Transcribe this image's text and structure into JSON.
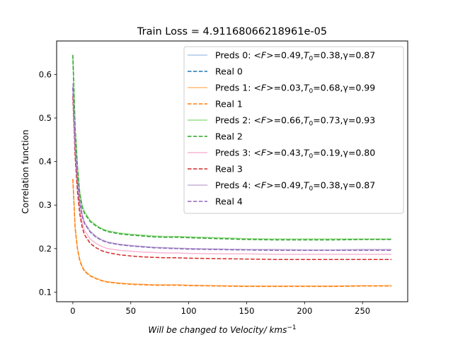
{
  "chart_data": {
    "type": "line",
    "title": "Train Loss = 4.91168066218961e-05",
    "xlabel": "Will be changed to Velocity/ kms",
    "xlabel_superscript": "−1",
    "ylabel": "Correlation function",
    "xlim": [
      -14,
      289
    ],
    "ylim": [
      0.078,
      0.677
    ],
    "xticks": [
      0,
      50,
      100,
      150,
      200,
      250
    ],
    "yticks": [
      0.1,
      0.2,
      0.3,
      0.4,
      0.5,
      0.6
    ],
    "grid": false,
    "legend_position": "top-right",
    "x": [
      0,
      2,
      4,
      6,
      8,
      10,
      15,
      20,
      25,
      30,
      40,
      50,
      60,
      70,
      80,
      90,
      100,
      125,
      150,
      175,
      200,
      225,
      250,
      275
    ],
    "series": [
      {
        "name": "Preds 0: <F>=0.49,T0=0.38,γ=0.87",
        "legend_label": {
          "pre": "Preds 0: ",
          "math": "<F>",
          "mid": "=0.49,",
          "tsub": "0",
          "post": "=0.38,γ=0.87"
        },
        "style": "solid",
        "color": "#aec7e8",
        "values": [
          0.58,
          0.44,
          0.36,
          0.31,
          0.28,
          0.26,
          0.24,
          0.228,
          0.22,
          0.215,
          0.21,
          0.207,
          0.205,
          0.203,
          0.202,
          0.201,
          0.2,
          0.199,
          0.198,
          0.198,
          0.197,
          0.197,
          0.198,
          0.198
        ]
      },
      {
        "name": "Real 0",
        "legend_label": {
          "pre": "Real 0"
        },
        "style": "dashed",
        "color": "#1f77b4",
        "values": [
          0.57,
          0.43,
          0.355,
          0.305,
          0.275,
          0.258,
          0.238,
          0.226,
          0.219,
          0.214,
          0.209,
          0.206,
          0.204,
          0.202,
          0.201,
          0.2,
          0.199,
          0.198,
          0.197,
          0.196,
          0.196,
          0.196,
          0.196,
          0.196
        ]
      },
      {
        "name": "Preds 1: <F>=0.03,T0=0.68,γ=0.99",
        "legend_label": {
          "pre": "Preds 1: ",
          "math": "<F>",
          "mid": "=0.03,",
          "tsub": "0",
          "post": "=0.68,γ=0.99"
        },
        "style": "solid",
        "color": "#ffbb78",
        "values": [
          0.36,
          0.25,
          0.2,
          0.175,
          0.16,
          0.15,
          0.138,
          0.132,
          0.127,
          0.124,
          0.121,
          0.119,
          0.118,
          0.117,
          0.117,
          0.117,
          0.116,
          0.115,
          0.114,
          0.114,
          0.114,
          0.114,
          0.115,
          0.115
        ]
      },
      {
        "name": "Real 1",
        "legend_label": {
          "pre": "Real 1"
        },
        "style": "dashed",
        "color": "#ff7f0e",
        "values": [
          0.36,
          0.245,
          0.198,
          0.172,
          0.158,
          0.148,
          0.137,
          0.131,
          0.126,
          0.123,
          0.12,
          0.118,
          0.117,
          0.116,
          0.116,
          0.116,
          0.115,
          0.114,
          0.113,
          0.113,
          0.113,
          0.113,
          0.114,
          0.114
        ]
      },
      {
        "name": "Preds 2: <F>=0.66,T0=0.73,γ=0.93",
        "legend_label": {
          "pre": "Preds 2: ",
          "math": "<F>",
          "mid": "=0.66,",
          "tsub": "0",
          "post": "=0.73,γ=0.93"
        },
        "style": "solid",
        "color": "#98df8a",
        "values": [
          0.64,
          0.48,
          0.39,
          0.33,
          0.3,
          0.285,
          0.265,
          0.254,
          0.246,
          0.241,
          0.236,
          0.233,
          0.231,
          0.229,
          0.228,
          0.228,
          0.227,
          0.225,
          0.223,
          0.222,
          0.222,
          0.222,
          0.222,
          0.222
        ]
      },
      {
        "name": "Real 2",
        "legend_label": {
          "pre": "Real 2"
        },
        "style": "dashed",
        "color": "#2ca02c",
        "values": [
          0.645,
          0.475,
          0.385,
          0.325,
          0.295,
          0.281,
          0.262,
          0.252,
          0.244,
          0.239,
          0.234,
          0.231,
          0.229,
          0.227,
          0.226,
          0.226,
          0.225,
          0.223,
          0.221,
          0.22,
          0.22,
          0.22,
          0.221,
          0.221
        ]
      },
      {
        "name": "Preds 3: <F>=0.43,T0=0.19,γ=0.80",
        "legend_label": {
          "pre": "Preds 3: ",
          "math": "<F>",
          "mid": "=0.43,",
          "tsub": "0",
          "post": "=0.19,γ=0.80"
        },
        "style": "solid",
        "color": "#f7b6d2",
        "values": [
          0.56,
          0.42,
          0.34,
          0.29,
          0.26,
          0.242,
          0.222,
          0.212,
          0.205,
          0.2,
          0.196,
          0.194,
          0.192,
          0.191,
          0.19,
          0.19,
          0.189,
          0.188,
          0.188,
          0.187,
          0.187,
          0.187,
          0.187,
          0.187
        ]
      },
      {
        "name": "Real 3",
        "legend_label": {
          "pre": "Real 3"
        },
        "style": "dashed",
        "color": "#d62728",
        "values": [
          0.55,
          0.41,
          0.33,
          0.28,
          0.25,
          0.232,
          0.212,
          0.202,
          0.195,
          0.191,
          0.186,
          0.183,
          0.181,
          0.18,
          0.179,
          0.179,
          0.178,
          0.177,
          0.176,
          0.175,
          0.175,
          0.175,
          0.175,
          0.175
        ]
      },
      {
        "name": "Preds 4: <F>=0.49,T0=0.38,γ=0.87",
        "legend_label": {
          "pre": "Preds 4: ",
          "math": "<F>",
          "mid": "=0.49,",
          "tsub": "0",
          "post": "=0.38,γ=0.87"
        },
        "style": "solid",
        "color": "#c5b0d5",
        "values": [
          0.58,
          0.44,
          0.36,
          0.31,
          0.28,
          0.26,
          0.24,
          0.228,
          0.22,
          0.215,
          0.21,
          0.207,
          0.205,
          0.203,
          0.202,
          0.201,
          0.2,
          0.199,
          0.198,
          0.198,
          0.197,
          0.197,
          0.198,
          0.198
        ]
      },
      {
        "name": "Real 4",
        "legend_label": {
          "pre": "Real 4"
        },
        "style": "dashed",
        "color": "#9467bd",
        "values": [
          0.57,
          0.43,
          0.355,
          0.305,
          0.275,
          0.258,
          0.238,
          0.226,
          0.219,
          0.214,
          0.209,
          0.206,
          0.204,
          0.202,
          0.201,
          0.2,
          0.199,
          0.198,
          0.197,
          0.196,
          0.196,
          0.196,
          0.196,
          0.196
        ]
      }
    ]
  }
}
